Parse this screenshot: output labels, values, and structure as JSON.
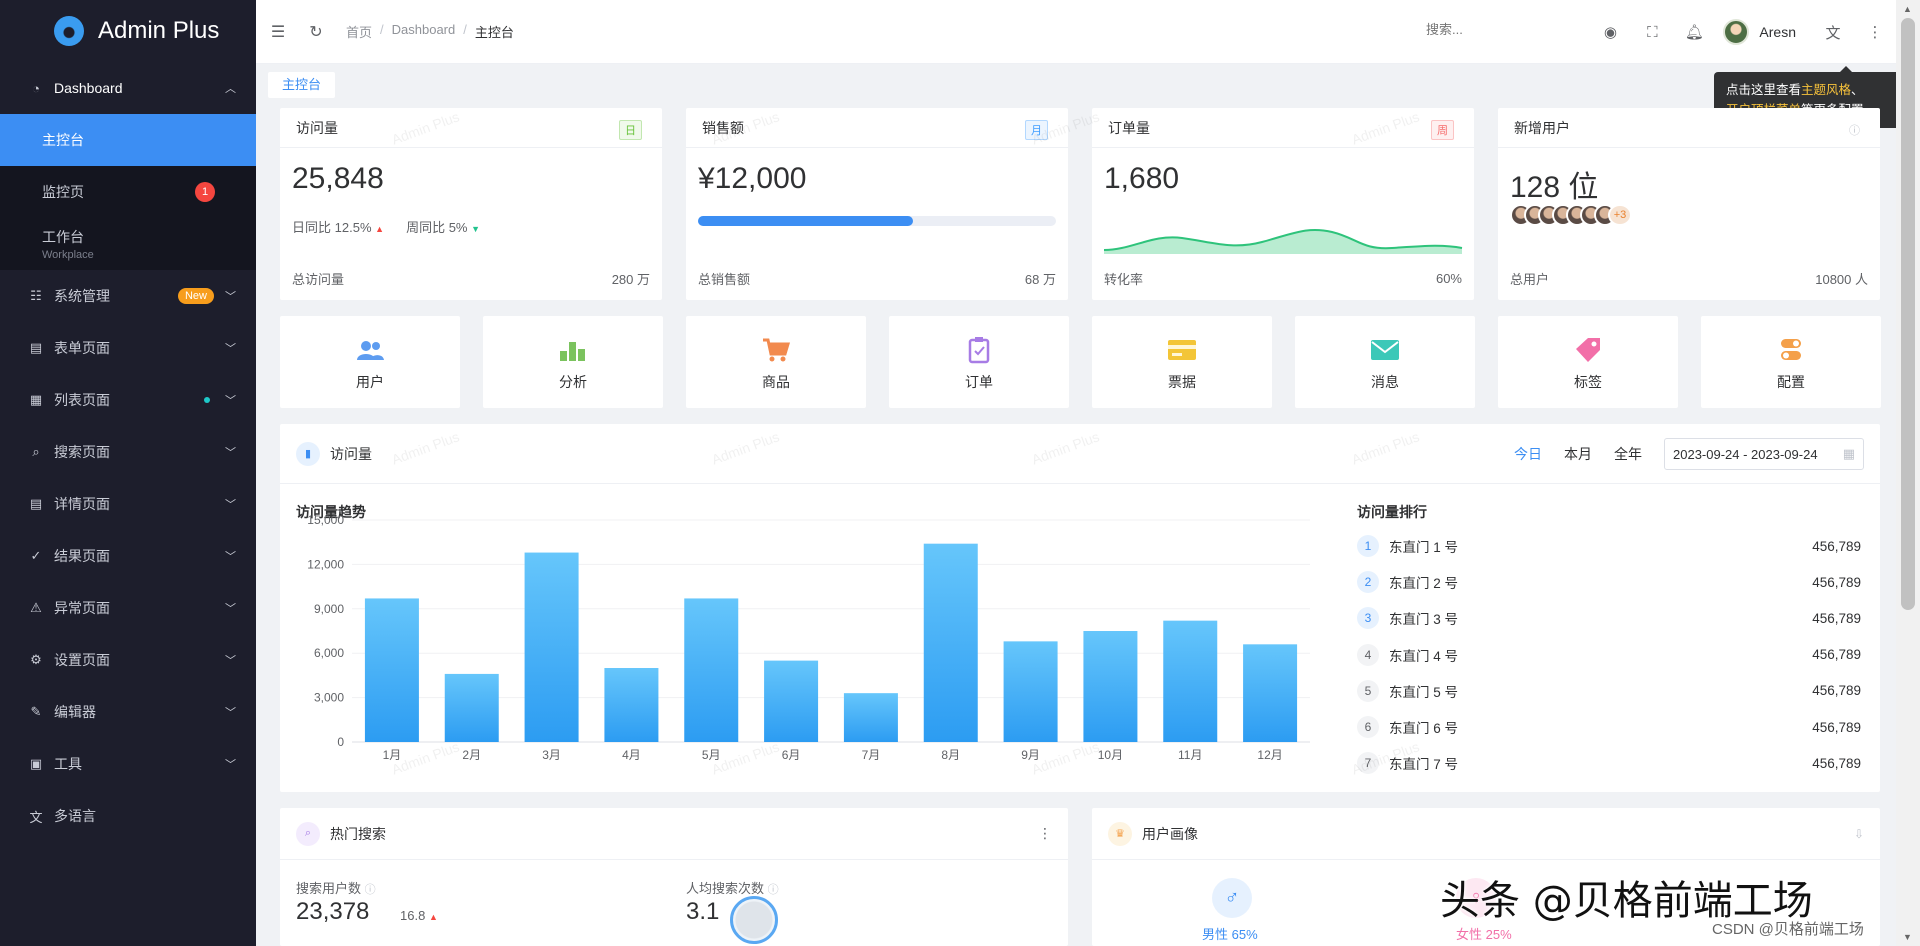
{
  "app": {
    "title": "Admin Plus"
  },
  "sidebar": {
    "dashboard": {
      "label": "Dashboard"
    },
    "sub": [
      {
        "label": "主控台"
      },
      {
        "label": "监控页",
        "count": "1"
      },
      {
        "label": "工作台",
        "sublabel": "Workplace"
      }
    ],
    "items": [
      {
        "label": "系统管理",
        "badge": "New"
      },
      {
        "label": "表单页面"
      },
      {
        "label": "列表页面"
      },
      {
        "label": "搜索页面"
      },
      {
        "label": "详情页面"
      },
      {
        "label": "结果页面"
      },
      {
        "label": "异常页面"
      },
      {
        "label": "设置页面"
      },
      {
        "label": "编辑器"
      },
      {
        "label": "工具"
      },
      {
        "label": "多语言"
      }
    ]
  },
  "header": {
    "breadcrumb": [
      "首页",
      "Dashboard",
      "主控台"
    ],
    "search_placeholder": "搜索...",
    "user_name": "Aresn"
  },
  "tabs": [
    {
      "label": "主控台"
    }
  ],
  "tooltip": {
    "pre": "点击这里查看",
    "hl1": "主题风格",
    "mid": "、",
    "hl2": "开启顶栏菜单",
    "post": "等更多配置"
  },
  "stats": [
    {
      "title": "访问量",
      "tag": "日",
      "value": "25,848",
      "day_label": "日同比",
      "day_value": "12.5%",
      "week_label": "周同比",
      "week_value": "5%",
      "foot_label": "总访问量",
      "foot_value": "280 万"
    },
    {
      "title": "销售额",
      "tag": "月",
      "value": "¥12,000",
      "progress": 0.6,
      "foot_label": "总销售额",
      "foot_value": "68 万"
    },
    {
      "title": "订单量",
      "tag": "周",
      "value": "1,680",
      "foot_label": "转化率",
      "foot_value": "60%"
    },
    {
      "title": "新增用户",
      "value": "128 位",
      "more": "+3",
      "foot_label": "总用户",
      "foot_value": "10800 人"
    }
  ],
  "quick": [
    {
      "label": "用户",
      "icon": "users-icon",
      "color": "#5d9cf0"
    },
    {
      "label": "分析",
      "icon": "bar-chart-icon",
      "color": "#7bc35e"
    },
    {
      "label": "商品",
      "icon": "cart-icon",
      "color": "#f28a4e"
    },
    {
      "label": "订单",
      "icon": "clipboard-icon",
      "color": "#a77ce5"
    },
    {
      "label": "票据",
      "icon": "card-icon",
      "color": "#f3c537"
    },
    {
      "label": "消息",
      "icon": "mail-icon",
      "color": "#3cc8b8"
    },
    {
      "label": "标签",
      "icon": "tag-icon",
      "color": "#f26fa8"
    },
    {
      "label": "配置",
      "icon": "toggle-icon",
      "color": "#f4a04a"
    }
  ],
  "visits": {
    "title": "访问量",
    "filters": [
      "今日",
      "本月",
      "全年"
    ],
    "date_range": "2023-09-24 - 2023-09-24",
    "trend_title": "访问量趋势",
    "rank_title": "访问量排行",
    "ranking": [
      {
        "num": "1",
        "name": "东直门 1 号",
        "value": "456,789"
      },
      {
        "num": "2",
        "name": "东直门 2 号",
        "value": "456,789"
      },
      {
        "num": "3",
        "name": "东直门 3 号",
        "value": "456,789"
      },
      {
        "num": "4",
        "name": "东直门 4 号",
        "value": "456,789"
      },
      {
        "num": "5",
        "name": "东直门 5 号",
        "value": "456,789"
      },
      {
        "num": "6",
        "name": "东直门 6 号",
        "value": "456,789"
      },
      {
        "num": "7",
        "name": "东直门 7 号",
        "value": "456,789"
      }
    ]
  },
  "chart_data": {
    "type": "bar",
    "categories": [
      "1月",
      "2月",
      "3月",
      "4月",
      "5月",
      "6月",
      "7月",
      "8月",
      "9月",
      "10月",
      "11月",
      "12月"
    ],
    "values": [
      9700,
      4600,
      12800,
      5000,
      9700,
      5500,
      3300,
      13400,
      6800,
      7500,
      8200,
      6600
    ],
    "yticks": [
      "0",
      "3,000",
      "6,000",
      "9,000",
      "12,000",
      "15,000"
    ],
    "ylim": [
      0,
      15000
    ],
    "color": "#2c9cf2"
  },
  "hot_search": {
    "title": "热门搜索",
    "users_label": "搜索用户数",
    "users_value": "23,378",
    "users_change": "16.8",
    "avg_label": "人均搜索次数",
    "avg_value": "3.1"
  },
  "portrait": {
    "title": "用户画像",
    "male": "男性 65%",
    "female": "女性 25%"
  },
  "overlay": {
    "brand": "头条 @贝格前端工场",
    "csdn": "CSDN @贝格前端工场"
  },
  "watermark_text": "Admin Plus"
}
